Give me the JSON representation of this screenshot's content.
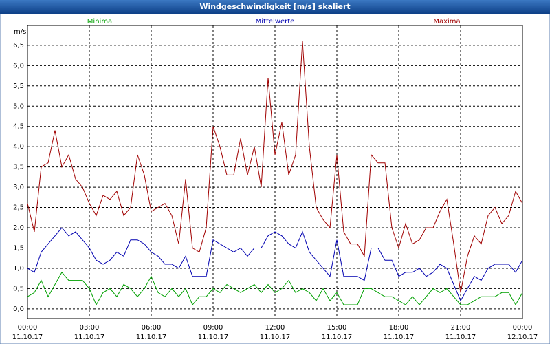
{
  "chart_data": {
    "type": "line",
    "title": "Windgeschwindigkeit [m/s] skaliert",
    "y_label": "m/s",
    "x": [
      0,
      20,
      40,
      60,
      80,
      100,
      120,
      140,
      160,
      180,
      200,
      220,
      240,
      260,
      280,
      300,
      320,
      340,
      360,
      380,
      400,
      420,
      440,
      460,
      480,
      500,
      520,
      540,
      560,
      580,
      600,
      620,
      640,
      660,
      680,
      700,
      720,
      740,
      760,
      780,
      800,
      820,
      840,
      860,
      880,
      900,
      920,
      940,
      960,
      980,
      1000,
      1020,
      1040,
      1060,
      1080,
      1100,
      1120,
      1140,
      1160,
      1180,
      1200,
      1220,
      1240,
      1260,
      1280,
      1300,
      1320,
      1340,
      1360,
      1380,
      1400,
      1420,
      1440
    ],
    "series": [
      {
        "name": "Minima",
        "color": "#00a000",
        "values": [
          0.3,
          0.4,
          0.7,
          0.3,
          0.6,
          0.9,
          0.7,
          0.7,
          0.7,
          0.5,
          0.1,
          0.4,
          0.5,
          0.3,
          0.6,
          0.5,
          0.3,
          0.5,
          0.8,
          0.4,
          0.3,
          0.5,
          0.3,
          0.5,
          0.1,
          0.3,
          0.3,
          0.5,
          0.4,
          0.6,
          0.5,
          0.4,
          0.5,
          0.6,
          0.4,
          0.6,
          0.4,
          0.5,
          0.7,
          0.4,
          0.5,
          0.4,
          0.2,
          0.5,
          0.2,
          0.4,
          0.1,
          0.1,
          0.1,
          0.5,
          0.5,
          0.4,
          0.3,
          0.3,
          0.2,
          0.1,
          0.3,
          0.1,
          0.3,
          0.5,
          0.4,
          0.5,
          0.3,
          0.1,
          0.1,
          0.2,
          0.3,
          0.3,
          0.3,
          0.4,
          0.4,
          0.1,
          0.4
        ]
      },
      {
        "name": "Mittelwerte",
        "color": "#0000b0",
        "values": [
          1.0,
          0.9,
          1.4,
          1.6,
          1.8,
          2.0,
          1.8,
          1.9,
          1.7,
          1.5,
          1.2,
          1.1,
          1.2,
          1.4,
          1.3,
          1.7,
          1.7,
          1.6,
          1.4,
          1.3,
          1.1,
          1.1,
          1.0,
          1.3,
          0.8,
          0.8,
          0.8,
          1.7,
          1.6,
          1.5,
          1.4,
          1.5,
          1.3,
          1.5,
          1.5,
          1.8,
          1.9,
          1.8,
          1.6,
          1.5,
          1.9,
          1.4,
          1.2,
          1.0,
          0.8,
          1.7,
          0.8,
          0.8,
          0.8,
          0.7,
          1.5,
          1.5,
          1.2,
          1.2,
          0.8,
          0.9,
          0.9,
          1.0,
          0.8,
          0.9,
          1.1,
          1.0,
          0.6,
          0.2,
          0.5,
          0.8,
          0.7,
          1.0,
          1.1,
          1.1,
          1.1,
          0.9,
          1.2
        ]
      },
      {
        "name": "Maxima",
        "color": "#a00000",
        "values": [
          2.6,
          1.9,
          3.5,
          3.6,
          4.4,
          3.5,
          3.8,
          3.2,
          3.0,
          2.6,
          2.3,
          2.8,
          2.7,
          2.9,
          2.3,
          2.5,
          3.8,
          3.3,
          2.4,
          2.5,
          2.6,
          2.3,
          1.6,
          3.2,
          1.5,
          1.4,
          2.0,
          4.5,
          4.0,
          3.3,
          3.3,
          4.2,
          3.3,
          4.0,
          3.0,
          5.7,
          3.8,
          4.6,
          3.3,
          3.8,
          6.6,
          4.0,
          2.5,
          2.2,
          2.0,
          3.8,
          1.9,
          1.6,
          1.6,
          1.3,
          3.8,
          3.6,
          3.6,
          2.0,
          1.5,
          2.1,
          1.6,
          1.7,
          2.0,
          2.0,
          2.4,
          2.7,
          1.6,
          0.4,
          1.3,
          1.8,
          1.6,
          2.3,
          2.5,
          2.1,
          2.3,
          2.9,
          2.6
        ]
      }
    ],
    "xlim": [
      0,
      1440
    ],
    "xticks": [
      {
        "value": 0,
        "label": "00:00",
        "date": "11.10.17"
      },
      {
        "value": 180,
        "label": "03:00",
        "date": "11.10.17"
      },
      {
        "value": 360,
        "label": "06:00",
        "date": "11.10.17"
      },
      {
        "value": 540,
        "label": "09:00",
        "date": "11.10.17"
      },
      {
        "value": 720,
        "label": "12:00",
        "date": "11.10.17"
      },
      {
        "value": 900,
        "label": "15:00",
        "date": "11.10.17"
      },
      {
        "value": 1080,
        "label": "18:00",
        "date": "11.10.17"
      },
      {
        "value": 1260,
        "label": "21:00",
        "date": "11.10.17"
      },
      {
        "value": 1440,
        "label": "00:00",
        "date": "12.10.17"
      }
    ],
    "ylim": [
      -0.24,
      6.99
    ],
    "yticks": [
      {
        "value": 0,
        "label": "0,0"
      },
      {
        "value": 0.5,
        "label": "0,5"
      },
      {
        "value": 1,
        "label": "1,0"
      },
      {
        "value": 1.5,
        "label": "1,5"
      },
      {
        "value": 2,
        "label": "2,0"
      },
      {
        "value": 2.5,
        "label": "2,5"
      },
      {
        "value": 3,
        "label": "3,0"
      },
      {
        "value": 3.5,
        "label": "3,5"
      },
      {
        "value": 4,
        "label": "4,0"
      },
      {
        "value": 4.5,
        "label": "4,5"
      },
      {
        "value": 5,
        "label": "5,0"
      },
      {
        "value": 5.5,
        "label": "5,5"
      },
      {
        "value": 6,
        "label": "6,0"
      },
      {
        "value": 6.5,
        "label": "6,5"
      }
    ],
    "grid": true
  }
}
